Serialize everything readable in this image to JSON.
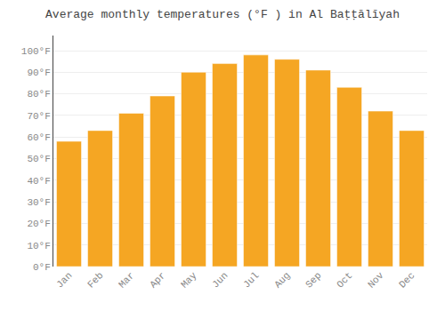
{
  "chart_data": {
    "type": "bar",
    "title": "Average monthly temperatures (°F ) in Al Baṭṭālīyah",
    "categories": [
      "Jan",
      "Feb",
      "Mar",
      "Apr",
      "May",
      "Jun",
      "Jul",
      "Aug",
      "Sep",
      "Oct",
      "Nov",
      "Dec"
    ],
    "values": [
      58,
      63,
      71,
      79,
      90,
      94,
      98,
      96,
      91,
      83,
      72,
      63
    ],
    "color": "#F5A623",
    "ylim": [
      0,
      107
    ],
    "yticks": [
      {
        "value": 0,
        "label": "0°F"
      },
      {
        "value": 10,
        "label": "10°F"
      },
      {
        "value": 20,
        "label": "20°F"
      },
      {
        "value": 30,
        "label": "30°F"
      },
      {
        "value": 40,
        "label": "40°F"
      },
      {
        "value": 50,
        "label": "50°F"
      },
      {
        "value": 60,
        "label": "60°F"
      },
      {
        "value": 70,
        "label": "70°F"
      },
      {
        "value": 80,
        "label": "80°F"
      },
      {
        "value": 90,
        "label": "90°F"
      },
      {
        "value": 100,
        "label": "100°F"
      }
    ],
    "grid": true
  }
}
